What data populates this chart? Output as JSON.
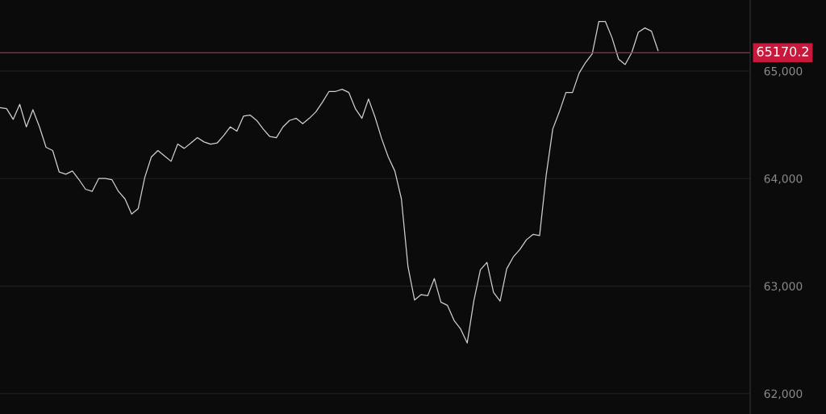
{
  "chart_data": {
    "type": "line",
    "categories": [
      null,
      null,
      null,
      null,
      null,
      null,
      null,
      null,
      null,
      null,
      null,
      null,
      null,
      null,
      null,
      null,
      null,
      null,
      null,
      null,
      null,
      null,
      null,
      null,
      null,
      null,
      null,
      null,
      null,
      null,
      null,
      null,
      null,
      null,
      null,
      null,
      null,
      null,
      null,
      null,
      null,
      null,
      null,
      null,
      null,
      null,
      null,
      null,
      null,
      null,
      null,
      null,
      null,
      null,
      null,
      null,
      null,
      null,
      null,
      null,
      null,
      null,
      null,
      null,
      null,
      null,
      null,
      null,
      null,
      null,
      null,
      null,
      null,
      null,
      null,
      null,
      null,
      null,
      null,
      null,
      null,
      null,
      null,
      null,
      null,
      null,
      null,
      null,
      null,
      null,
      null,
      null,
      null,
      null,
      null,
      null,
      null,
      null,
      null,
      null,
      null,
      null,
      null,
      null,
      null,
      null,
      null,
      null,
      null,
      null,
      null,
      null,
      null,
      null,
      null
    ],
    "series": [
      {
        "color": "#cfcfcf",
        "values": [
          64660,
          64650,
          64550,
          64690,
          64480,
          64640,
          64480,
          64290,
          64260,
          64060,
          64040,
          64070,
          63990,
          63900,
          63880,
          64000,
          64000,
          63990,
          63880,
          63810,
          63670,
          63720,
          64010,
          64200,
          64260,
          64210,
          64160,
          64320,
          64280,
          64330,
          64380,
          64340,
          64320,
          64330,
          64400,
          64480,
          64440,
          64580,
          64590,
          64540,
          64460,
          64390,
          64380,
          64480,
          64540,
          64560,
          64510,
          64560,
          64620,
          64710,
          64810,
          64810,
          64830,
          64800,
          64650,
          64560,
          64740,
          64570,
          64370,
          64200,
          64070,
          63810,
          63180,
          62870,
          62920,
          62910,
          63070,
          62850,
          62820,
          62680,
          62600,
          62470,
          62860,
          63150,
          63220,
          62940,
          62860,
          63160,
          63270,
          63340,
          63430,
          63480,
          63470,
          64030,
          64460,
          64620,
          64800,
          64800,
          64980,
          65080,
          65160,
          65460,
          65460,
          65310,
          65110,
          65060,
          65170,
          65360,
          65400,
          65370,
          65190,
          null,
          null,
          null,
          null,
          null,
          null,
          null,
          null,
          null,
          null,
          null,
          null,
          null,
          null
        ]
      }
    ],
    "ylim": [
      61810,
      65660
    ],
    "yticks": [
      {
        "value": 62000,
        "label": "62,000"
      },
      {
        "value": 63000,
        "label": "63,000"
      },
      {
        "value": 64000,
        "label": "64,000"
      },
      {
        "value": 65000,
        "label": "65,000"
      }
    ],
    "ref_lines": [
      {
        "axis": "y",
        "value": 65170.2,
        "label": "65170.2",
        "color": "#c8183c"
      }
    ],
    "grid": "y",
    "tick_labels": "y",
    "marker": "none",
    "line_style": "solid"
  }
}
